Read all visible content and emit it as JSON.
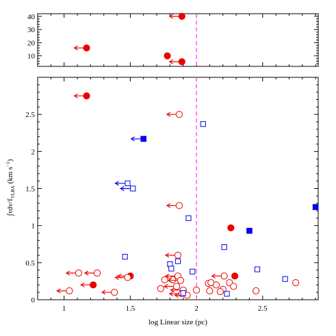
{
  "chart_data": {
    "type": "scatter",
    "xlabel": "log Linear size (pc)",
    "ylabel": "∫τdv/f_VLBA (km s⁻¹)",
    "ylabel_parts": {
      "main": "∫τdv/f",
      "sub": "VLBA",
      "unit": " (km s",
      "sup": "−1",
      "close": ")"
    },
    "xlim": [
      0.8,
      2.92
    ],
    "x_ticks": [
      1,
      1.5,
      2,
      2.5
    ],
    "x_tick_labels": [
      "1",
      "1.5",
      "2",
      "2.5"
    ],
    "vertical_line": {
      "x": 2.0,
      "color": "#ff33ff",
      "style": "dashed"
    },
    "panels": [
      {
        "name": "top",
        "ylim": [
          2,
          42
        ],
        "y_ticks": [
          10,
          20,
          30,
          40
        ],
        "y_tick_labels": [
          "10",
          "20",
          "30",
          "40"
        ]
      },
      {
        "name": "bottom",
        "ylim": [
          0,
          3.0
        ],
        "y_ticks": [
          0,
          0.5,
          1,
          1.5,
          2,
          2.5
        ],
        "y_tick_labels": [
          "0",
          "0.5",
          "1",
          "1.5",
          "2",
          "2.5"
        ]
      }
    ],
    "colors": {
      "red": "#ee0000",
      "blue": "#0000ee",
      "dashed_line": "#ff33ff"
    },
    "series": [
      {
        "marker": "filled-circle",
        "color": "red",
        "points": [
          {
            "panel": "top",
            "x": 1.89,
            "y": 40,
            "upper_limit": true
          },
          {
            "panel": "top",
            "x": 1.17,
            "y": 16,
            "upper_limit": true
          },
          {
            "panel": "top",
            "x": 1.78,
            "y": 10,
            "upper_limit": false
          },
          {
            "panel": "top",
            "x": 1.89,
            "y": 5.5,
            "upper_limit": true
          },
          {
            "panel": "bottom",
            "x": 1.17,
            "y": 2.75,
            "upper_limit": true
          },
          {
            "panel": "bottom",
            "x": 2.26,
            "y": 0.97,
            "upper_limit": false
          },
          {
            "panel": "bottom",
            "x": 1.5,
            "y": 0.32,
            "upper_limit": true
          },
          {
            "panel": "bottom",
            "x": 2.29,
            "y": 0.32,
            "upper_limit": false
          },
          {
            "panel": "bottom",
            "x": 1.22,
            "y": 0.2,
            "upper_limit": true
          }
        ]
      },
      {
        "marker": "open-circle",
        "color": "red",
        "points": [
          {
            "x": 1.87,
            "y": 2.5,
            "upper_limit": true
          },
          {
            "x": 1.87,
            "y": 1.27,
            "upper_limit": true
          },
          {
            "x": 1.86,
            "y": 0.6,
            "upper_limit": true
          },
          {
            "x": 1.11,
            "y": 0.36,
            "upper_limit": true
          },
          {
            "x": 1.25,
            "y": 0.36,
            "upper_limit": true
          },
          {
            "x": 1.48,
            "y": 0.3,
            "upper_limit": true
          },
          {
            "x": 1.86,
            "y": 0.32,
            "upper_limit": true
          },
          {
            "x": 2.21,
            "y": 0.32,
            "upper_limit": true
          },
          {
            "x": 1.76,
            "y": 0.27,
            "upper_limit": false
          },
          {
            "x": 1.82,
            "y": 0.27,
            "upper_limit": false
          },
          {
            "x": 1.88,
            "y": 0.26,
            "upper_limit": true
          },
          {
            "x": 2.09,
            "y": 0.22,
            "upper_limit": false
          },
          {
            "x": 2.11,
            "y": 0.23,
            "upper_limit": false
          },
          {
            "x": 2.25,
            "y": 0.23,
            "upper_limit": false
          },
          {
            "x": 2.75,
            "y": 0.23,
            "upper_limit": false
          },
          {
            "x": 2.15,
            "y": 0.2,
            "upper_limit": false
          },
          {
            "x": 2.2,
            "y": 0.14,
            "upper_limit": false
          },
          {
            "x": 2.28,
            "y": 0.18,
            "upper_limit": false
          },
          {
            "x": 1.73,
            "y": 0.15,
            "upper_limit": false
          },
          {
            "x": 1.85,
            "y": 0.18,
            "upper_limit": true
          },
          {
            "x": 1.9,
            "y": 0.13,
            "upper_limit": true
          },
          {
            "x": 2.0,
            "y": 0.13,
            "upper_limit": false
          },
          {
            "x": 2.1,
            "y": 0.12,
            "upper_limit": false
          },
          {
            "x": 2.18,
            "y": 0.11,
            "upper_limit": false
          },
          {
            "x": 2.45,
            "y": 0.12,
            "upper_limit": false
          },
          {
            "x": 1.04,
            "y": 0.12,
            "upper_limit": true
          },
          {
            "x": 1.38,
            "y": 0.1,
            "upper_limit": true
          },
          {
            "x": 1.89,
            "y": 0.08,
            "upper_limit": true
          },
          {
            "x": 1.93,
            "y": 0.06,
            "upper_limit": true
          }
        ]
      },
      {
        "marker": "filled-square",
        "color": "blue",
        "points": [
          {
            "x": 1.6,
            "y": 2.17,
            "upper_limit": true
          },
          {
            "x": 2.9,
            "y": 1.25,
            "upper_limit": false
          },
          {
            "x": 2.4,
            "y": 0.93,
            "upper_limit": false
          }
        ]
      },
      {
        "marker": "open-square",
        "color": "blue",
        "points": [
          {
            "x": 2.05,
            "y": 2.37,
            "upper_limit": false
          },
          {
            "x": 1.48,
            "y": 1.57,
            "upper_limit": true
          },
          {
            "x": 1.52,
            "y": 1.5,
            "upper_limit": true
          },
          {
            "x": 1.94,
            "y": 1.1,
            "upper_limit": false
          },
          {
            "x": 2.21,
            "y": 0.71,
            "upper_limit": false
          },
          {
            "x": 1.46,
            "y": 0.58,
            "upper_limit": false
          },
          {
            "x": 1.86,
            "y": 0.52,
            "upper_limit": false
          },
          {
            "x": 1.8,
            "y": 0.48,
            "upper_limit": false
          },
          {
            "x": 1.81,
            "y": 0.42,
            "upper_limit": false
          },
          {
            "x": 2.46,
            "y": 0.41,
            "upper_limit": false
          },
          {
            "x": 1.97,
            "y": 0.38,
            "upper_limit": false
          },
          {
            "x": 2.67,
            "y": 0.28,
            "upper_limit": false
          },
          {
            "x": 1.9,
            "y": 0.09,
            "upper_limit": false
          },
          {
            "x": 2.23,
            "y": 0.08,
            "upper_limit": false
          }
        ]
      }
    ]
  }
}
